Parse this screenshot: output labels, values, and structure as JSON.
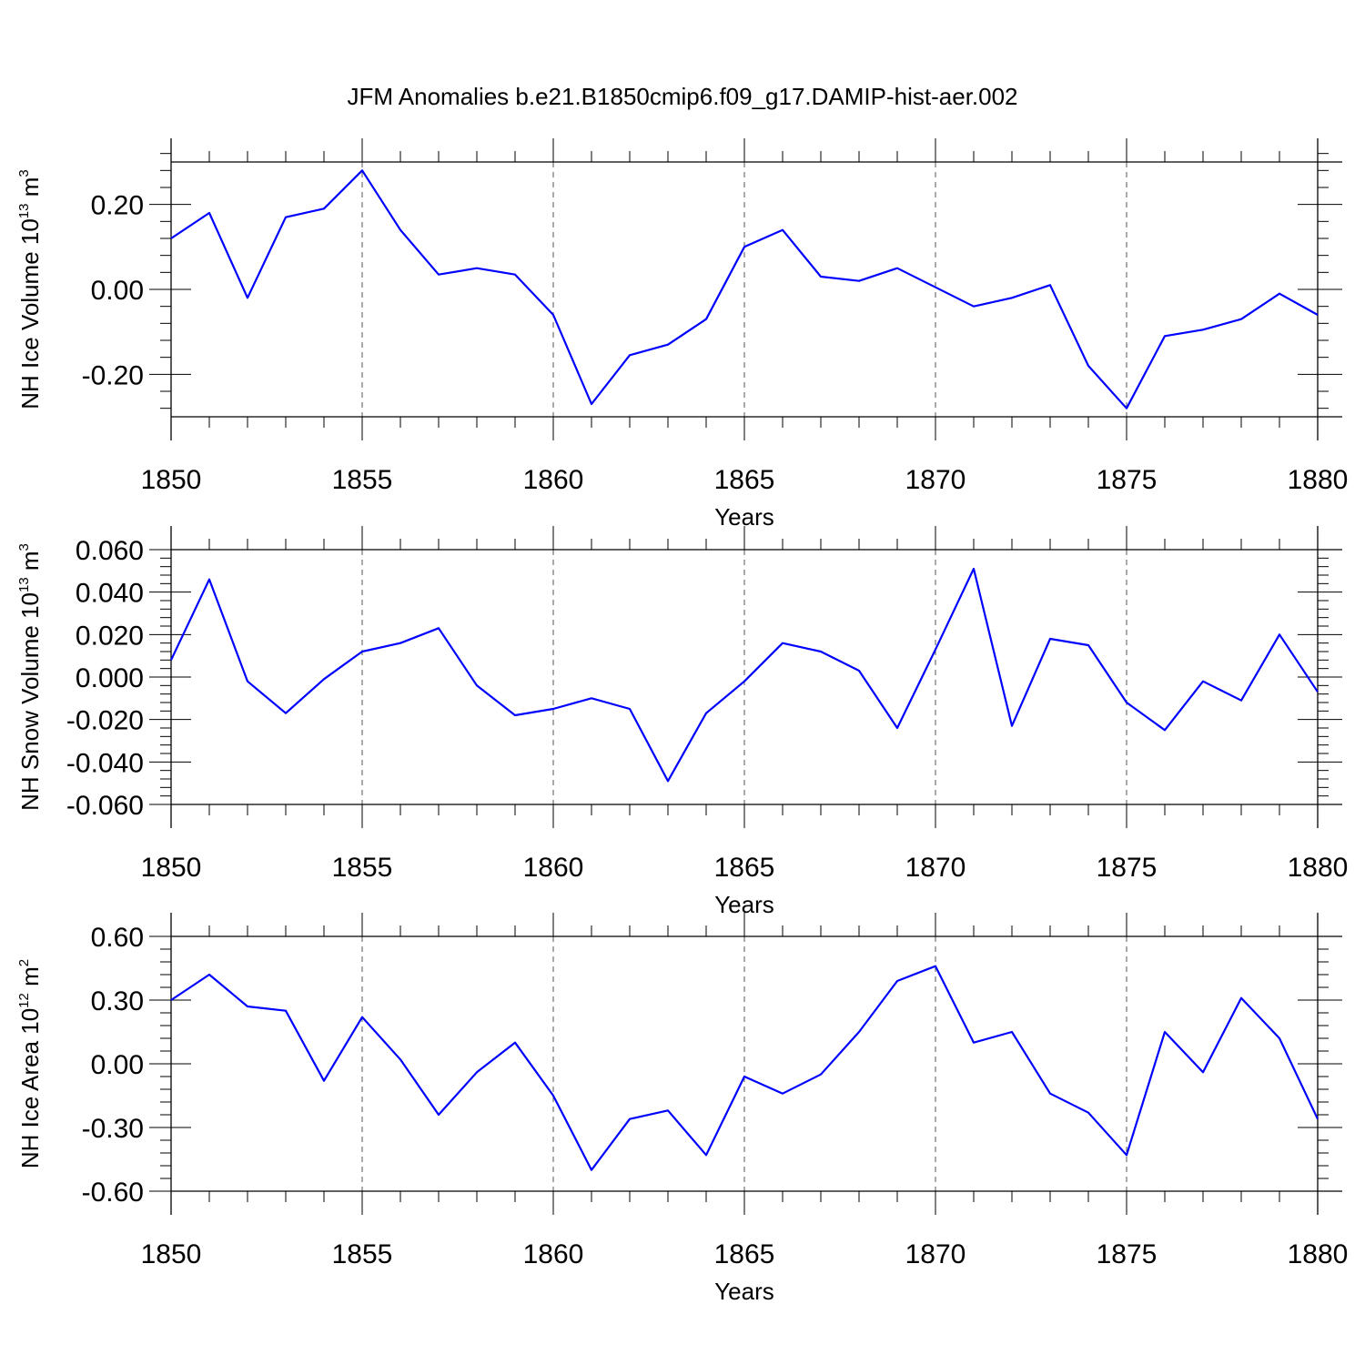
{
  "title": "JFM Anomalies b.e21.B1850cmip6.f09_g17.DAMIP-hist-aer.002",
  "colors": {
    "line": "#0000ff",
    "axis": "#000000",
    "grid": "#555555"
  },
  "chart_data": [
    {
      "type": "line",
      "ylabel": {
        "main": "NH Ice Volume 10",
        "exp": "13",
        "unit": " m",
        "unit_exp": "3"
      },
      "xlabel": "Years",
      "xlim": [
        1850,
        1880
      ],
      "ylim": [
        -0.3,
        0.3
      ],
      "yticks": [
        -0.2,
        0.0,
        0.2
      ],
      "ytick_labels": [
        "-0.20",
        "0.00",
        "0.20"
      ],
      "xticks": [
        1850,
        1855,
        1860,
        1865,
        1870,
        1875,
        1880
      ],
      "xtick_labels": [
        "1850",
        "1855",
        "1860",
        "1865",
        "1870",
        "1875",
        "1880"
      ],
      "grid": "vertical dashed at major x ticks",
      "x": [
        1850,
        1851,
        1852,
        1853,
        1854,
        1855,
        1856,
        1857,
        1858,
        1859,
        1860,
        1861,
        1862,
        1863,
        1864,
        1865,
        1866,
        1867,
        1868,
        1869,
        1870,
        1871,
        1872,
        1873,
        1874,
        1875,
        1876,
        1877,
        1878,
        1879,
        1880
      ],
      "y": [
        0.12,
        0.18,
        -0.02,
        0.17,
        0.19,
        0.28,
        0.14,
        0.035,
        0.05,
        0.035,
        -0.06,
        -0.27,
        -0.155,
        -0.13,
        -0.07,
        0.1,
        0.14,
        0.03,
        0.02,
        0.05,
        0.005,
        -0.04,
        -0.02,
        0.01,
        -0.18,
        -0.28,
        -0.11,
        -0.095,
        -0.07,
        -0.01,
        -0.06
      ]
    },
    {
      "type": "line",
      "ylabel": {
        "main": "NH Snow Volume 10",
        "exp": "13",
        "unit": " m",
        "unit_exp": "3"
      },
      "xlabel": "Years",
      "xlim": [
        1850,
        1880
      ],
      "ylim": [
        -0.06,
        0.06
      ],
      "yticks": [
        -0.06,
        -0.04,
        -0.02,
        0.0,
        0.02,
        0.04,
        0.06
      ],
      "ytick_labels": [
        "-0.060",
        "-0.040",
        "-0.020",
        "0.000",
        "0.020",
        "0.040",
        "0.060"
      ],
      "xticks": [
        1850,
        1855,
        1860,
        1865,
        1870,
        1875,
        1880
      ],
      "xtick_labels": [
        "1850",
        "1855",
        "1860",
        "1865",
        "1870",
        "1875",
        "1880"
      ],
      "grid": "vertical dashed at major x ticks",
      "x": [
        1850,
        1851,
        1852,
        1853,
        1854,
        1855,
        1856,
        1857,
        1858,
        1859,
        1860,
        1861,
        1862,
        1863,
        1864,
        1865,
        1866,
        1867,
        1868,
        1869,
        1870,
        1871,
        1872,
        1873,
        1874,
        1875,
        1876,
        1877,
        1878,
        1879,
        1880
      ],
      "y": [
        0.008,
        0.046,
        -0.002,
        -0.017,
        -0.001,
        0.012,
        0.016,
        0.023,
        -0.004,
        -0.018,
        -0.015,
        -0.01,
        -0.015,
        -0.049,
        -0.017,
        -0.002,
        0.016,
        0.012,
        0.003,
        -0.024,
        0.013,
        0.051,
        -0.023,
        0.018,
        0.015,
        -0.012,
        -0.025,
        -0.002,
        -0.011,
        0.02,
        -0.007
      ]
    },
    {
      "type": "line",
      "ylabel": {
        "main": "NH Ice Area 10",
        "exp": "12",
        "unit": " m",
        "unit_exp": "2"
      },
      "xlabel": "Years",
      "xlim": [
        1850,
        1880
      ],
      "ylim": [
        -0.6,
        0.6
      ],
      "yticks": [
        -0.6,
        -0.3,
        0.0,
        0.3,
        0.6
      ],
      "ytick_labels": [
        "-0.60",
        "-0.30",
        "0.00",
        "0.30",
        "0.60"
      ],
      "xticks": [
        1850,
        1855,
        1860,
        1865,
        1870,
        1875,
        1880
      ],
      "xtick_labels": [
        "1850",
        "1855",
        "1860",
        "1865",
        "1870",
        "1875",
        "1880"
      ],
      "grid": "vertical dashed at major x ticks",
      "x": [
        1850,
        1851,
        1852,
        1853,
        1854,
        1855,
        1856,
        1857,
        1858,
        1859,
        1860,
        1861,
        1862,
        1863,
        1864,
        1865,
        1866,
        1867,
        1868,
        1869,
        1870,
        1871,
        1872,
        1873,
        1874,
        1875,
        1876,
        1877,
        1878,
        1879,
        1880
      ],
      "y": [
        0.3,
        0.42,
        0.27,
        0.25,
        -0.08,
        0.22,
        0.02,
        -0.24,
        -0.04,
        0.1,
        -0.15,
        -0.5,
        -0.26,
        -0.22,
        -0.43,
        -0.06,
        -0.14,
        -0.05,
        0.15,
        0.39,
        0.46,
        0.1,
        0.15,
        -0.14,
        -0.23,
        -0.43,
        0.15,
        -0.04,
        0.31,
        0.12,
        -0.26
      ]
    }
  ]
}
